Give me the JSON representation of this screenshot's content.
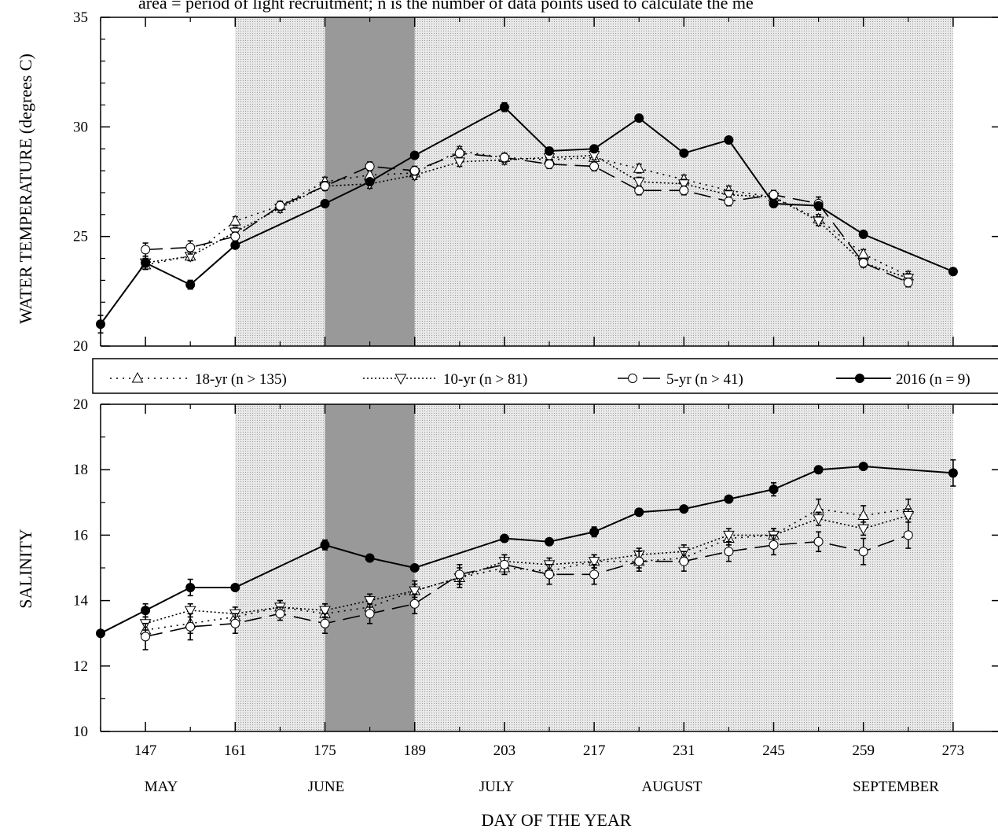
{
  "caption": "area = period of light recruitment; n is the number of data points used to calculate the me",
  "colors": {
    "recruitment_band": "#dedede",
    "peak_band": "#999999",
    "line": "#000000"
  },
  "x_axis": {
    "label": "DAY OF THE YEAR",
    "ticks": [
      147,
      161,
      175,
      189,
      203,
      217,
      231,
      245,
      259,
      273
    ],
    "months": [
      "MAY",
      "JUNE",
      "JULY",
      "AUGUST",
      "SEPTEMBER"
    ]
  },
  "legend": {
    "items": [
      {
        "label": "18-yr (n > 135)",
        "style": "dotted",
        "marker": "triangle-up"
      },
      {
        "label": "10-yr (n > 81)",
        "style": "dotted",
        "marker": "triangle-down"
      },
      {
        "label": "5-yr (n > 41)",
        "style": "dashed",
        "marker": "circle-open"
      },
      {
        "label": "2016 (n = 9)",
        "style": "solid",
        "marker": "circle-filled"
      }
    ]
  },
  "chart_data": [
    {
      "type": "line",
      "id": "temperature",
      "ylabel": "WATER TEMPERATURE (degrees C)",
      "ylim": [
        20,
        35
      ],
      "yticks": [
        20,
        25,
        30,
        35
      ],
      "xlim": [
        140,
        280
      ],
      "shaded_regions": [
        {
          "name": "recruitment",
          "x": [
            161,
            273
          ]
        },
        {
          "name": "peak",
          "x": [
            175,
            189
          ]
        }
      ],
      "series": [
        {
          "name": "18-yr (n > 135)",
          "x": [
            147,
            154,
            161,
            168,
            175,
            182,
            189,
            196,
            203,
            210,
            217,
            224,
            231,
            238,
            245,
            252,
            259,
            266
          ],
          "y": [
            23.7,
            24.1,
            25.7,
            26.4,
            27.5,
            27.8,
            27.9,
            28.9,
            28.6,
            28.5,
            28.6,
            28.1,
            27.6,
            27.1,
            26.8,
            25.8,
            24.2,
            23.2
          ],
          "err": [
            0.2,
            0.2,
            0.2,
            0.2,
            0.2,
            0.2,
            0.2,
            0.2,
            0.2,
            0.2,
            0.2,
            0.2,
            0.2,
            0.2,
            0.2,
            0.2,
            0.2,
            0.2
          ]
        },
        {
          "name": "10-yr (n > 81)",
          "x": [
            147,
            154,
            161,
            168,
            175,
            182,
            189,
            196,
            203,
            210,
            217,
            224,
            231,
            238,
            245,
            252,
            259,
            266
          ],
          "y": [
            23.8,
            24.1,
            25.2,
            26.3,
            27.3,
            27.4,
            27.8,
            28.4,
            28.5,
            28.6,
            28.7,
            27.5,
            27.4,
            26.9,
            26.8,
            25.7,
            23.8,
            23.1
          ],
          "err": [
            0.2,
            0.2,
            0.2,
            0.2,
            0.2,
            0.2,
            0.2,
            0.2,
            0.2,
            0.2,
            0.2,
            0.2,
            0.2,
            0.2,
            0.2,
            0.2,
            0.2,
            0.2
          ]
        },
        {
          "name": "5-yr (n > 41)",
          "x": [
            147,
            154,
            161,
            168,
            175,
            182,
            189,
            196,
            203,
            210,
            217,
            224,
            231,
            238,
            245,
            252,
            259,
            266
          ],
          "y": [
            24.4,
            24.5,
            25.0,
            26.4,
            27.3,
            28.2,
            28.0,
            28.8,
            28.6,
            28.3,
            28.2,
            27.1,
            27.1,
            26.6,
            26.9,
            26.5,
            23.8,
            22.9
          ],
          "err": [
            0.3,
            0.3,
            0.2,
            0.2,
            0.2,
            0.2,
            0.2,
            0.2,
            0.2,
            0.2,
            0.2,
            0.2,
            0.2,
            0.2,
            0.2,
            0.3,
            0.2,
            0.2
          ]
        },
        {
          "name": "2016 (n = 9)",
          "x": [
            140,
            147,
            154,
            161,
            175,
            182,
            189,
            203,
            210,
            217,
            224,
            231,
            238,
            245,
            252,
            259,
            273
          ],
          "y": [
            21.0,
            23.8,
            22.8,
            24.6,
            26.5,
            27.5,
            28.7,
            30.9,
            28.9,
            29.0,
            30.4,
            28.8,
            29.4,
            26.5,
            26.4,
            25.1,
            23.4
          ],
          "err": [
            0.4,
            0.3,
            0.2,
            0,
            0,
            0,
            0,
            0.2,
            0,
            0,
            0,
            0,
            0,
            0,
            0,
            0,
            0
          ]
        }
      ]
    },
    {
      "type": "line",
      "id": "salinity",
      "ylabel": "SALINITY",
      "ylim": [
        10,
        20
      ],
      "yticks": [
        10,
        12,
        14,
        16,
        18,
        20
      ],
      "xlim": [
        140,
        280
      ],
      "shaded_regions": [
        {
          "name": "recruitment",
          "x": [
            161,
            273
          ]
        },
        {
          "name": "peak",
          "x": [
            175,
            189
          ]
        }
      ],
      "series": [
        {
          "name": "18-yr (n > 135)",
          "x": [
            147,
            154,
            161,
            168,
            175,
            182,
            189,
            196,
            203,
            210,
            217,
            224,
            231,
            238,
            245,
            252,
            259,
            266
          ],
          "y": [
            13.1,
            13.3,
            13.5,
            13.8,
            13.6,
            13.8,
            14.3,
            14.7,
            15.0,
            14.9,
            15.2,
            15.2,
            15.3,
            15.9,
            16.0,
            16.8,
            16.6,
            16.8
          ],
          "err": [
            0.3,
            0.3,
            0.2,
            0.2,
            0.3,
            0.3,
            0.3,
            0.3,
            0.2,
            0.2,
            0.2,
            0.2,
            0.2,
            0.2,
            0.2,
            0.3,
            0.3,
            0.3
          ]
        },
        {
          "name": "10-yr (n > 81)",
          "x": [
            147,
            154,
            161,
            168,
            175,
            182,
            189,
            196,
            203,
            210,
            217,
            224,
            231,
            238,
            245,
            252,
            259,
            266
          ],
          "y": [
            13.3,
            13.7,
            13.6,
            13.8,
            13.7,
            14.0,
            14.3,
            14.7,
            15.2,
            15.1,
            15.2,
            15.4,
            15.5,
            16.0,
            16.0,
            16.5,
            16.2,
            16.6
          ],
          "err": [
            0.2,
            0.2,
            0.2,
            0.2,
            0.2,
            0.2,
            0.2,
            0.2,
            0.2,
            0.2,
            0.2,
            0.2,
            0.2,
            0.2,
            0.2,
            0.2,
            0.2,
            0.2
          ]
        },
        {
          "name": "5-yr (n > 41)",
          "x": [
            147,
            154,
            161,
            168,
            175,
            182,
            189,
            196,
            203,
            210,
            217,
            224,
            231,
            238,
            245,
            252,
            259,
            266
          ],
          "y": [
            12.9,
            13.2,
            13.3,
            13.6,
            13.3,
            13.6,
            13.9,
            14.8,
            15.1,
            14.8,
            14.8,
            15.2,
            15.2,
            15.5,
            15.7,
            15.8,
            15.5,
            16.0
          ],
          "err": [
            0.4,
            0.4,
            0.3,
            0.2,
            0.3,
            0.3,
            0.3,
            0.3,
            0.3,
            0.3,
            0.3,
            0.3,
            0.3,
            0.3,
            0.3,
            0.3,
            0.4,
            0.4
          ]
        },
        {
          "name": "2016 (n = 9)",
          "x": [
            140,
            147,
            154,
            161,
            175,
            182,
            189,
            203,
            210,
            217,
            224,
            231,
            238,
            245,
            252,
            259,
            273
          ],
          "y": [
            13.0,
            13.7,
            14.4,
            14.4,
            15.7,
            15.3,
            15.0,
            15.9,
            15.8,
            16.1,
            16.7,
            16.8,
            17.1,
            17.4,
            18.0,
            18.1,
            17.9
          ],
          "err": [
            0,
            0.2,
            0.25,
            0,
            0.15,
            0.1,
            0,
            0,
            0,
            0.15,
            0.1,
            0,
            0,
            0.2,
            0,
            0.1,
            0.4
          ]
        }
      ]
    }
  ]
}
